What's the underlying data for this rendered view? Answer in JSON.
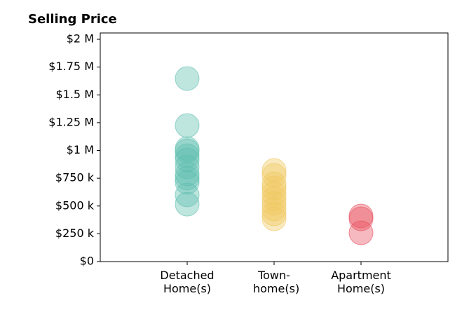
{
  "chart_data": {
    "type": "strip",
    "title": "Selling Price",
    "categories": [
      "Detached Home(s)",
      "Town-home(s)",
      "Apartment Home(s)"
    ],
    "series": [
      {
        "color": "#5fbfb0",
        "values": [
          1647000,
          1224000,
          1016000,
          997000,
          953000,
          915000,
          852000,
          789000,
          751000,
          713000,
          600000,
          517000
        ]
      },
      {
        "color": "#f0c860",
        "values": [
          820000,
          776000,
          700000,
          662000,
          612000,
          568000,
          524000,
          473000,
          429000,
          385000
        ]
      },
      {
        "color": "#e8505f",
        "values": [
          410000,
          385000,
          259000
        ]
      }
    ],
    "ylim": [
      0,
      2057000
    ],
    "yticks": [
      {
        "value": 0,
        "label": "$0"
      },
      {
        "value": 250000,
        "label": "$250 k"
      },
      {
        "value": 500000,
        "label": "$500 k"
      },
      {
        "value": 750000,
        "label": "$750 k"
      },
      {
        "value": 1000000,
        "label": "$1 M"
      },
      {
        "value": 1250000,
        "label": "$1.25 M"
      },
      {
        "value": 1500000,
        "label": "$1.5 M"
      },
      {
        "value": 1750000,
        "label": "$1.75 M"
      },
      {
        "value": 2000000,
        "label": "$2 M"
      }
    ]
  }
}
